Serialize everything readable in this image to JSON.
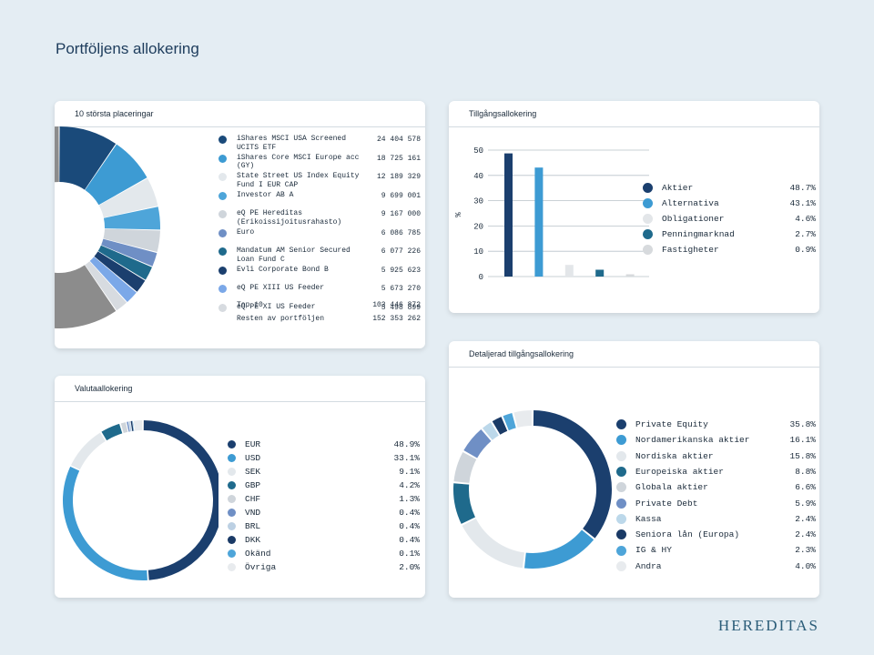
{
  "page": {
    "title": "Portföljens allokering",
    "brand": "HEREDITAS"
  },
  "cards": {
    "top10": "10 största placeringar",
    "asset": "Tillgångsallokering",
    "currency": "Valutaallokering",
    "detailed": "Detaljerad tillgångsallokering"
  },
  "chart_data": [
    {
      "type": "pie",
      "title": "10 största placeringar",
      "items": [
        {
          "name": "iShares MSCI USA Screened UCITS ETF",
          "amount": "24 404 578",
          "pct_label": "9.54 %",
          "value": 9.54,
          "color": "#1a4a7a"
        },
        {
          "name": "iShares Core MSCI Europe acc (GY)",
          "amount": "18 725 161",
          "pct_label": "7.32 %",
          "value": 7.32,
          "color": "#3d9bd3"
        },
        {
          "name": "State Street US Index Equity Fund I EUR CAP",
          "amount": "12 189 329",
          "pct_label": "4.77 %",
          "value": 4.77,
          "color": "#e3e8ec"
        },
        {
          "name": "Investor AB A",
          "amount": "9 699 001",
          "pct_label": "3.79 %",
          "value": 3.79,
          "color": "#4ea5d9"
        },
        {
          "name": "eQ PE Hereditas (Erikoissijoitusrahasto)",
          "amount": "9 167 000",
          "pct_label": "3.58 %",
          "value": 3.58,
          "color": "#cfd5db"
        },
        {
          "name": "Euro",
          "amount": "6 086 785",
          "pct_label": "2.38 %",
          "value": 2.38,
          "color": "#6f8fc5"
        },
        {
          "name": "Mandatum AM Senior Secured Loan Fund C",
          "amount": "6 077 226",
          "pct_label": "2.38 %",
          "value": 2.38,
          "color": "#1f6a8c"
        },
        {
          "name": "Evli Corporate Bond B",
          "amount": "5 925 623",
          "pct_label": "2.32 %",
          "value": 2.32,
          "color": "#1b3f6e"
        },
        {
          "name": "eQ PE XIII US Feeder",
          "amount": "5 673 270",
          "pct_label": "2.22 %",
          "value": 2.22,
          "color": "#7ba8e8"
        },
        {
          "name": "eQ PE XI US Feeder",
          "amount": "5 498 899",
          "pct_label": "2.15 %",
          "value": 2.15,
          "color": "#d7dbe0"
        }
      ],
      "rest_value": 59.56,
      "rest_color": "#8c8c8c",
      "summary": [
        {
          "label": "Top 10",
          "amount": "103 446 872",
          "pct_label": "40.44 %"
        },
        {
          "label": "Resten av portföljen",
          "amount": "152 353 262",
          "pct_label": "59.56 %"
        }
      ]
    },
    {
      "type": "bar",
      "title": "Tillgångsallokering",
      "ylabel": "%",
      "ylim": [
        0,
        50
      ],
      "yticks": [
        "0",
        "10",
        "20",
        "30",
        "40",
        "50"
      ],
      "grid": true,
      "legend_position": "right",
      "categories": [
        "Aktier",
        "Alternativa",
        "Obligationer",
        "Penningmarknad",
        "Fastigheter"
      ],
      "values": [
        48.7,
        43.1,
        4.6,
        2.7,
        0.9
      ],
      "labels": [
        "48.7%",
        "43.1%",
        "4.6%",
        "2.7%",
        "0.9%"
      ],
      "colors": [
        "#1b3f6e",
        "#3d9bd3",
        "#e3e6e9",
        "#1f6a8c",
        "#d7dadd"
      ]
    },
    {
      "type": "pie",
      "title": "Valutaallokering",
      "legend_position": "right",
      "categories": [
        "EUR",
        "USD",
        "SEK",
        "GBP",
        "CHF",
        "VND",
        "BRL",
        "DKK",
        "Okänd",
        "Övriga"
      ],
      "values": [
        48.9,
        33.1,
        9.1,
        4.2,
        1.3,
        0.4,
        0.4,
        0.4,
        0.1,
        2.0
      ],
      "labels": [
        "48.9%",
        "33.1%",
        "9.1%",
        "4.2%",
        "1.3%",
        "0.4%",
        "0.4%",
        "0.4%",
        "0.1%",
        "2.0%"
      ],
      "colors": [
        "#1b3f6e",
        "#3d9bd3",
        "#e3e8ec",
        "#1f6a8c",
        "#cfd5db",
        "#6f8fc5",
        "#bcd0e3",
        "#1a3a66",
        "#4ea5d9",
        "#e8ebee"
      ]
    },
    {
      "type": "pie",
      "title": "Detaljerad tillgångsallokering",
      "legend_position": "right",
      "categories": [
        "Private Equity",
        "Nordamerikanska aktier",
        "Nordiska aktier",
        "Europeiska aktier",
        "Globala aktier",
        "Private Debt",
        "Kassa",
        "Seniora lån (Europa)",
        "IG & HY",
        "Andra"
      ],
      "values": [
        35.8,
        16.1,
        15.8,
        8.8,
        6.6,
        5.9,
        2.4,
        2.4,
        2.3,
        4.0
      ],
      "labels": [
        "35.8%",
        "16.1%",
        "15.8%",
        "8.8%",
        "6.6%",
        "5.9%",
        "2.4%",
        "2.4%",
        "2.3%",
        "4.0%"
      ],
      "colors": [
        "#1b3f6e",
        "#3d9bd3",
        "#e3e8ec",
        "#1f6a8c",
        "#cfd5db",
        "#6f8fc5",
        "#bcd8ea",
        "#1a3a66",
        "#4ea5d9",
        "#e8ebee"
      ]
    }
  ]
}
